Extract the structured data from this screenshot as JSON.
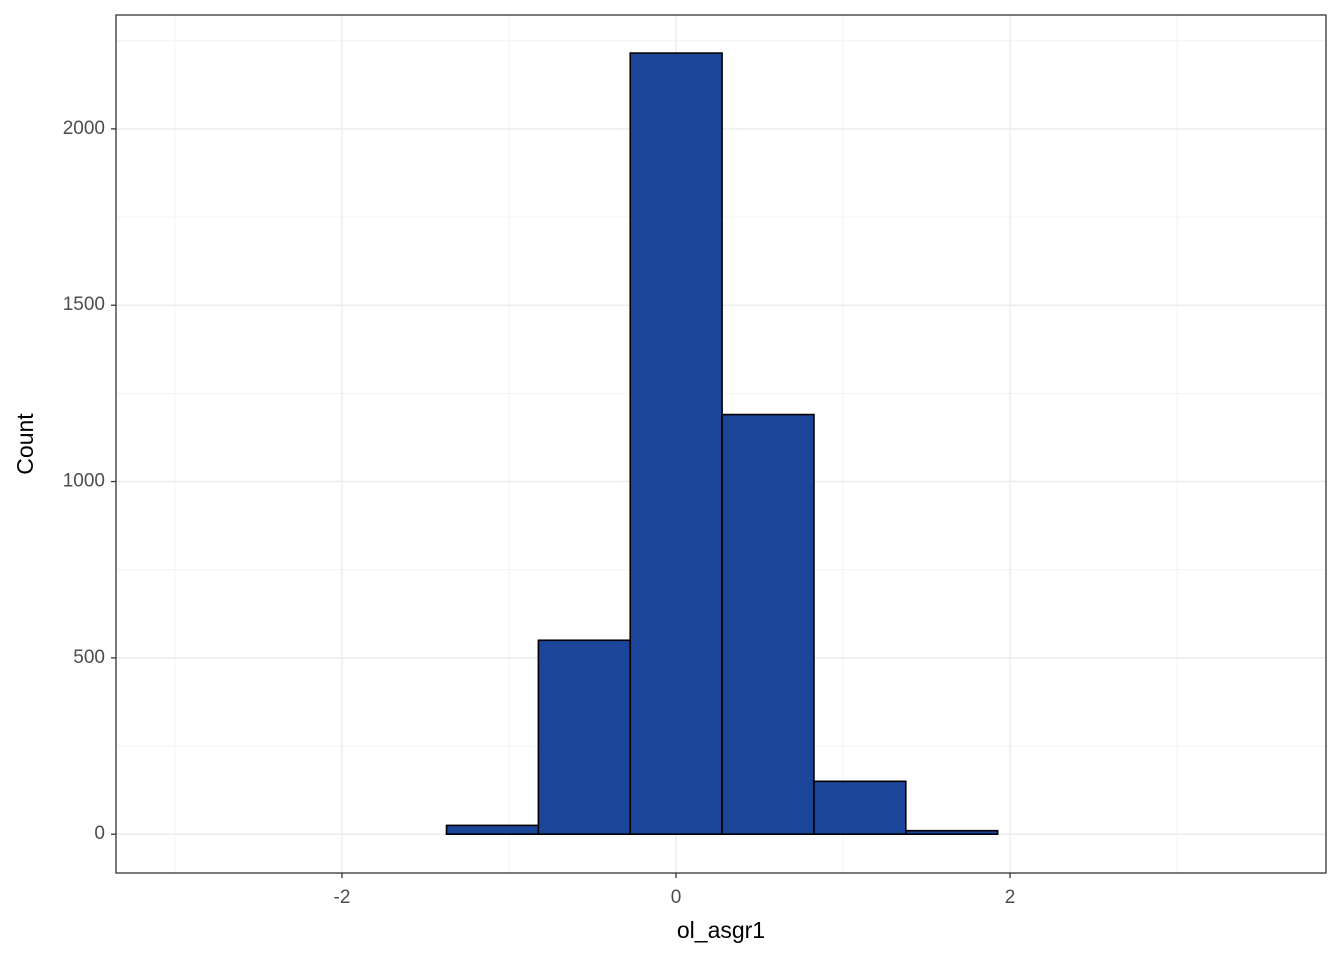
{
  "chart_data": {
    "type": "histogram",
    "x_label": "ol_asgr1",
    "y_label": "Count",
    "bins": [
      -3.024,
      -2.474,
      -1.924,
      -1.374,
      -0.824,
      -0.274,
      0.276,
      0.826,
      1.376,
      1.926,
      2.476,
      3.026,
      3.576
    ],
    "values": [
      0,
      0,
      0,
      25,
      550,
      2215,
      1190,
      150,
      10,
      0,
      0,
      0
    ],
    "color": "#1a4599",
    "xlim": [
      -3.353,
      3.892
    ],
    "ylim": [
      -110,
      2323
    ],
    "xticks": [
      -2,
      0,
      2
    ],
    "yticks": [
      0,
      500,
      1000,
      1500,
      2000
    ],
    "x_minor_ticks": [
      -3,
      -1,
      1,
      3
    ],
    "y_minor_ticks": [
      250,
      750,
      1250,
      1750,
      2250
    ],
    "grid": true
  }
}
